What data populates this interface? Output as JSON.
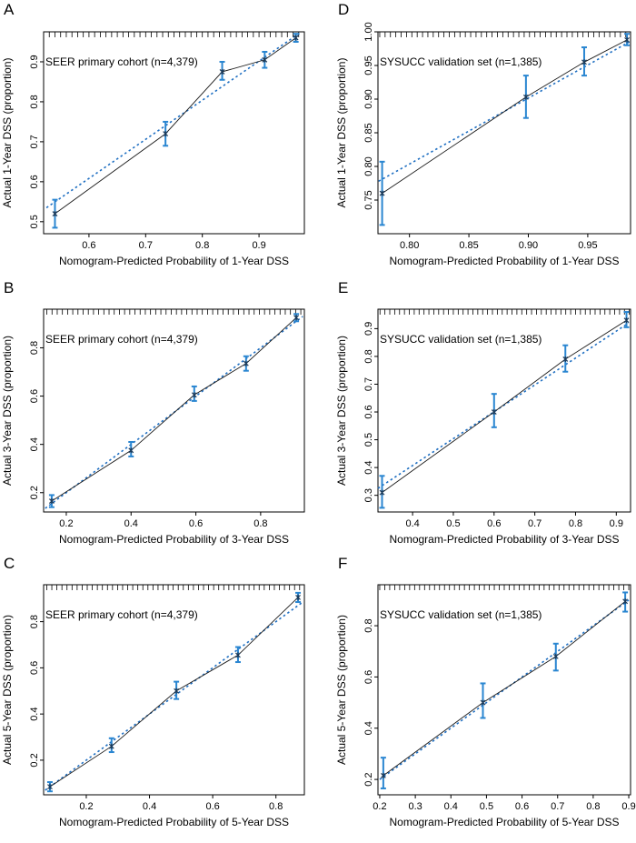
{
  "figure": {
    "colors": {
      "observed": "#1a1a1a",
      "ideal": "#1f6fc2",
      "errorbar": "#2a86d1",
      "point": "#1a3a5a",
      "axis": "#000000"
    }
  },
  "chart_data": [
    {
      "panel_label": "A",
      "type": "line",
      "annotation": "SEER primary  cohort (n=4,379)",
      "xlabel": "Nomogram-Predicted Probability of 1-Year DSS",
      "ylabel": "Actual 1-Year DSS (proportion)",
      "xlim": [
        0.52,
        0.98
      ],
      "ylim": [
        0.47,
        0.975
      ],
      "xticks": [
        0.6,
        0.7,
        0.8,
        0.9
      ],
      "xtick_labels": [
        "0.6",
        "0.7",
        "0.8",
        "0.9"
      ],
      "yticks": [
        0.5,
        0.6,
        0.7,
        0.8,
        0.9
      ],
      "ytick_labels": [
        "0.5",
        "0.6",
        "0.7",
        "0.8",
        "0.9"
      ],
      "rug_start": 0.53,
      "rug_step": 0.01,
      "ideal": [
        [
          0.525,
          0.535
        ],
        [
          0.975,
          0.975
        ]
      ],
      "series": [
        {
          "name": "observed",
          "x": [
            0.54,
            0.735,
            0.835,
            0.91,
            0.965
          ],
          "y": [
            0.52,
            0.72,
            0.875,
            0.905,
            0.96
          ],
          "lo": [
            0.485,
            0.69,
            0.855,
            0.885,
            0.95
          ],
          "hi": [
            0.555,
            0.75,
            0.9,
            0.925,
            0.97
          ]
        }
      ]
    },
    {
      "panel_label": "B",
      "type": "line",
      "annotation": "SEER primary  cohort (n=4,379)",
      "xlabel": "Nomogram-Predicted Probability of 3-Year DSS",
      "ylabel": "Actual 3-Year DSS (proportion)",
      "xlim": [
        0.13,
        0.935
      ],
      "ylim": [
        0.12,
        0.96
      ],
      "xticks": [
        0.2,
        0.4,
        0.6,
        0.8
      ],
      "xtick_labels": [
        "0.2",
        "0.4",
        "0.6",
        "0.8"
      ],
      "yticks": [
        0.2,
        0.4,
        0.6,
        0.8
      ],
      "ytick_labels": [
        "0.2",
        "0.4",
        "0.6",
        "0.8"
      ],
      "rug_start": 0.14,
      "rug_step": 0.016,
      "ideal": [
        [
          0.135,
          0.135
        ],
        [
          0.93,
          0.93
        ]
      ],
      "series": [
        {
          "name": "observed",
          "x": [
            0.155,
            0.4,
            0.595,
            0.755,
            0.91
          ],
          "y": [
            0.165,
            0.375,
            0.605,
            0.735,
            0.925
          ],
          "lo": [
            0.14,
            0.35,
            0.58,
            0.705,
            0.91
          ],
          "hi": [
            0.19,
            0.41,
            0.64,
            0.765,
            0.94
          ]
        }
      ]
    },
    {
      "panel_label": "C",
      "type": "line",
      "annotation": "SEER primary  cohort (n=4,379)",
      "xlabel": "Nomogram-Predicted Probability of 5-Year DSS",
      "ylabel": "Actual 5-Year DSS (proportion)",
      "xlim": [
        0.065,
        0.89
      ],
      "ylim": [
        0.05,
        0.96
      ],
      "xticks": [
        0.2,
        0.4,
        0.6,
        0.8
      ],
      "xtick_labels": [
        "0.2",
        "0.4",
        "0.6",
        "0.8"
      ],
      "yticks": [
        0.2,
        0.4,
        0.6,
        0.8
      ],
      "ytick_labels": [
        "0.2",
        "0.4",
        "0.6",
        "0.8"
      ],
      "rug_start": 0.075,
      "rug_step": 0.016,
      "ideal": [
        [
          0.07,
          0.07
        ],
        [
          0.885,
          0.885
        ]
      ],
      "series": [
        {
          "name": "observed",
          "x": [
            0.085,
            0.28,
            0.485,
            0.68,
            0.87
          ],
          "y": [
            0.085,
            0.26,
            0.5,
            0.655,
            0.905
          ],
          "lo": [
            0.065,
            0.235,
            0.465,
            0.625,
            0.885
          ],
          "hi": [
            0.105,
            0.295,
            0.54,
            0.69,
            0.925
          ]
        }
      ]
    },
    {
      "panel_label": "D",
      "type": "line",
      "annotation": "SYSUCC validation set (n=1,385)",
      "xlabel": "Nomogram-Predicted Probability of 1-Year DSS",
      "ylabel": "Actual 1-Year DSS (proportion)",
      "xlim": [
        0.7735,
        0.986
      ],
      "ylim": [
        0.7,
        1.0
      ],
      "xticks": [
        0.8,
        0.85,
        0.9,
        0.95
      ],
      "xtick_labels": [
        "0.80",
        "0.85",
        "0.90",
        "0.95"
      ],
      "yticks": [
        0.75,
        0.8,
        0.85,
        0.9,
        0.95,
        1.0
      ],
      "ytick_labels": [
        "0.75",
        "0.80",
        "0.85",
        "0.90",
        "0.95",
        "1.00"
      ],
      "rug_start": 0.775,
      "rug_step": 0.0045,
      "ideal": [
        [
          0.774,
          0.778
        ],
        [
          0.985,
          0.985
        ]
      ],
      "series": [
        {
          "name": "observed",
          "x": [
            0.777,
            0.898,
            0.947,
            0.983
          ],
          "y": [
            0.76,
            0.903,
            0.955,
            0.988
          ],
          "lo": [
            0.713,
            0.872,
            0.935,
            0.98
          ],
          "hi": [
            0.807,
            0.935,
            0.977,
            0.997
          ]
        }
      ]
    },
    {
      "panel_label": "E",
      "type": "line",
      "annotation": "SYSUCC validation set (n=1,385)",
      "xlabel": "Nomogram-Predicted Probability of 3-Year DSS",
      "ylabel": "Actual 3-Year DSS (proportion)",
      "xlim": [
        0.315,
        0.935
      ],
      "ylim": [
        0.24,
        0.97
      ],
      "xticks": [
        0.4,
        0.5,
        0.6,
        0.7,
        0.8,
        0.9
      ],
      "xtick_labels": [
        "0.4",
        "0.5",
        "0.6",
        "0.7",
        "0.8",
        "0.9"
      ],
      "yticks": [
        0.3,
        0.4,
        0.5,
        0.6,
        0.7,
        0.8,
        0.9
      ],
      "ytick_labels": [
        "0.3",
        "0.4",
        "0.5",
        "0.6",
        "0.7",
        "0.8",
        "0.9"
      ],
      "rug_start": 0.32,
      "rug_step": 0.012,
      "ideal": [
        [
          0.315,
          0.325
        ],
        [
          0.93,
          0.92
        ]
      ],
      "series": [
        {
          "name": "observed",
          "x": [
            0.325,
            0.6,
            0.775,
            0.925
          ],
          "y": [
            0.31,
            0.6,
            0.79,
            0.93
          ],
          "lo": [
            0.255,
            0.545,
            0.745,
            0.905
          ],
          "hi": [
            0.37,
            0.665,
            0.84,
            0.96
          ]
        }
      ]
    },
    {
      "panel_label": "F",
      "type": "line",
      "annotation": "SYSUCC validation set (n=1,385)",
      "xlabel": "Nomogram-Predicted Probability of 5-Year DSS",
      "ylabel": "Actual 5-Year DSS (proportion)",
      "xlim": [
        0.195,
        0.905
      ],
      "ylim": [
        0.14,
        0.96
      ],
      "xticks": [
        0.2,
        0.3,
        0.4,
        0.5,
        0.6,
        0.7,
        0.8,
        0.9
      ],
      "xtick_labels": [
        "0.2",
        "0.3",
        "0.4",
        "0.5",
        "0.6",
        "0.7",
        "0.8",
        "0.9"
      ],
      "yticks": [
        0.2,
        0.4,
        0.6,
        0.8
      ],
      "ytick_labels": [
        "0.2",
        "0.4",
        "0.6",
        "0.8"
      ],
      "rug_start": 0.2,
      "rug_step": 0.014,
      "ideal": [
        [
          0.2,
          0.2
        ],
        [
          0.9,
          0.9
        ]
      ],
      "series": [
        {
          "name": "observed",
          "x": [
            0.21,
            0.49,
            0.695,
            0.89
          ],
          "y": [
            0.215,
            0.5,
            0.68,
            0.895
          ],
          "lo": [
            0.165,
            0.44,
            0.625,
            0.855
          ],
          "hi": [
            0.285,
            0.575,
            0.73,
            0.93
          ]
        }
      ]
    }
  ]
}
